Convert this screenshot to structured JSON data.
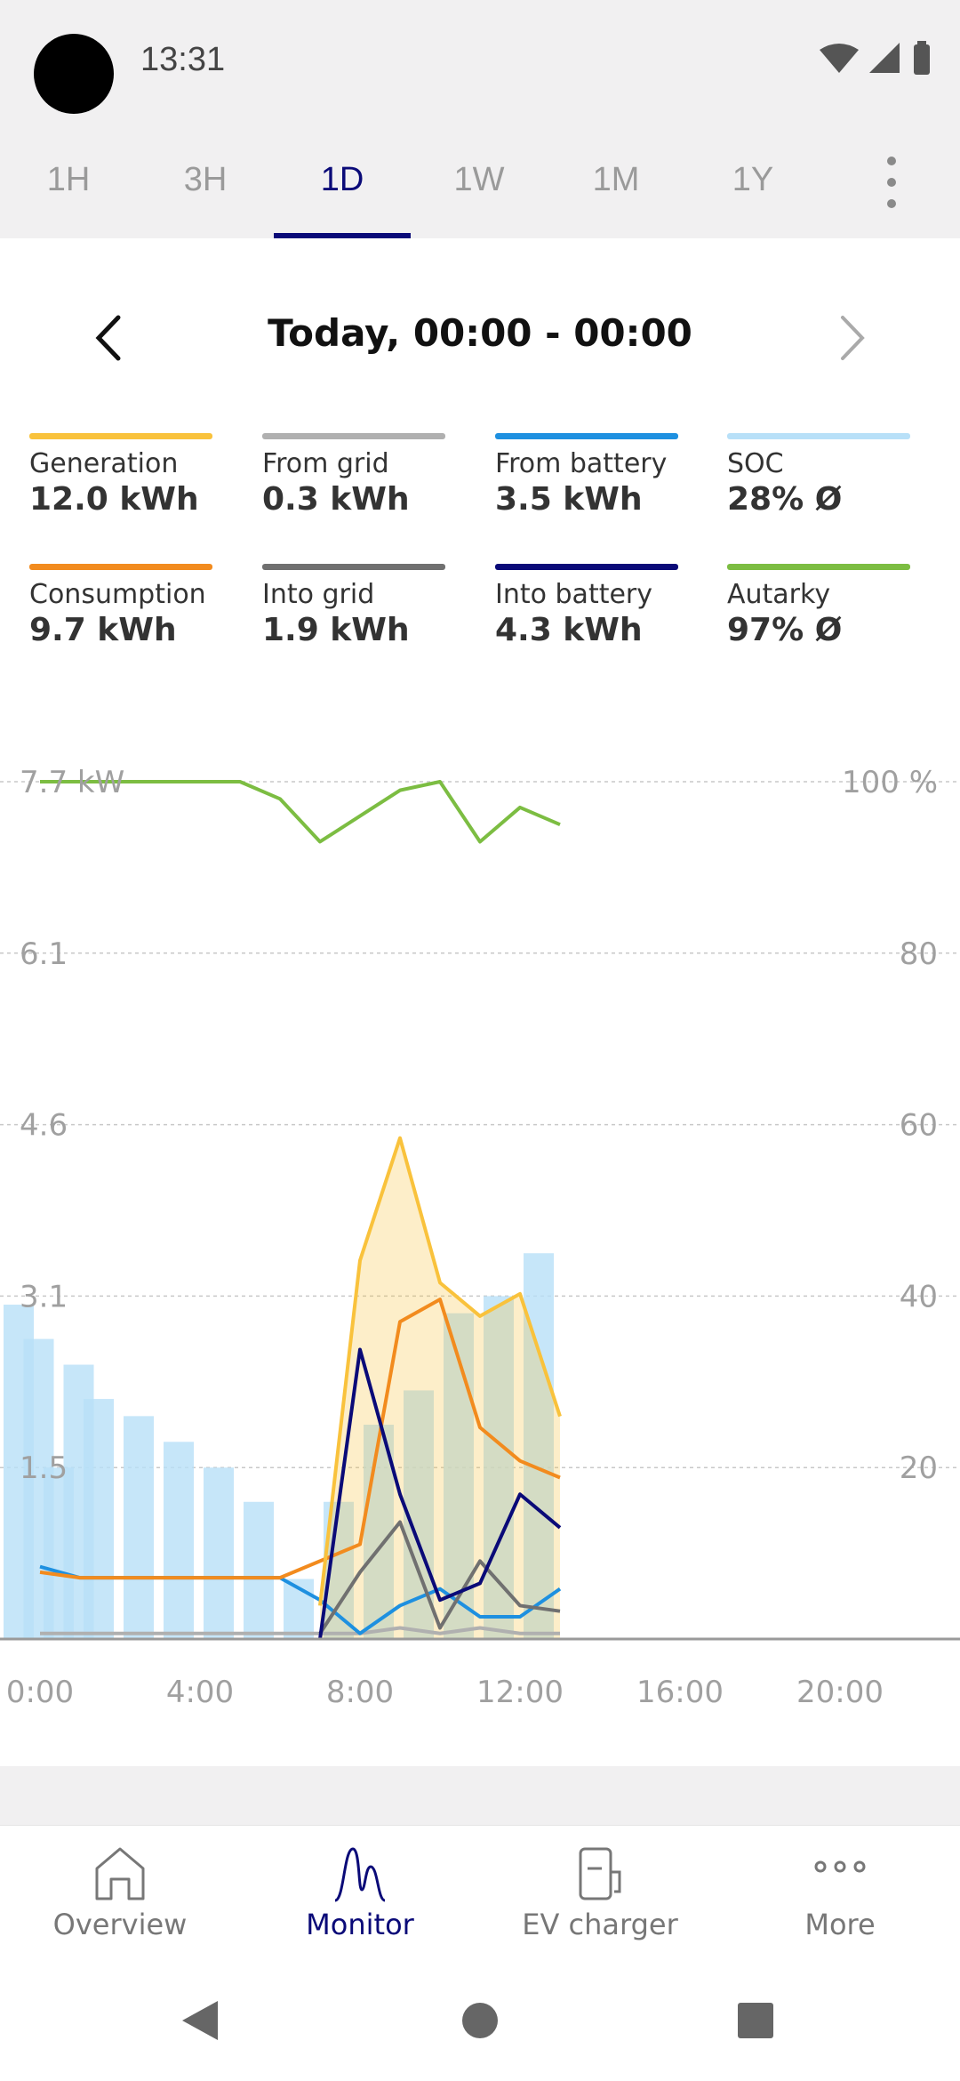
{
  "status": {
    "time": "13:31"
  },
  "tabs": [
    {
      "label": "1H"
    },
    {
      "label": "3H"
    },
    {
      "label": "1D",
      "active": true
    },
    {
      "label": "1W"
    },
    {
      "label": "1M"
    },
    {
      "label": "1Y"
    }
  ],
  "date_range": "Today, 00:00 - 00:00",
  "legend": [
    {
      "label": "Generation",
      "value": "12.0 kWh",
      "color": "#f9c23c"
    },
    {
      "label": "From grid",
      "value": "0.3 kWh",
      "color": "#b0b0b0"
    },
    {
      "label": "From battery",
      "value": "3.5 kWh",
      "color": "#1e90e0"
    },
    {
      "label": "SOC",
      "value": "28% Ø",
      "color": "#b8e0f8"
    },
    {
      "label": "Consumption",
      "value": "9.7 kWh",
      "color": "#f28b1e"
    },
    {
      "label": "Into grid",
      "value": "1.9 kWh",
      "color": "#707070"
    },
    {
      "label": "Into battery",
      "value": "4.3 kWh",
      "color": "#0a0a78"
    },
    {
      "label": "Autarky",
      "value": "97% Ø",
      "color": "#7cbd42"
    }
  ],
  "chart_data": {
    "type": "line",
    "x": [
      "00:00",
      "01:00",
      "02:00",
      "03:00",
      "04:00",
      "05:00",
      "06:00",
      "07:00",
      "08:00",
      "09:00",
      "10:00",
      "11:00",
      "12:00",
      "13:00"
    ],
    "x_ticks": [
      "0:00",
      "4:00",
      "8:00",
      "12:00",
      "16:00",
      "20:00"
    ],
    "xlim": [
      0,
      24
    ],
    "y_left_ticks": [
      "7.7 kW",
      "6.1",
      "4.6",
      "3.1",
      "1.5"
    ],
    "y_left_lim": [
      0,
      7.7
    ],
    "y_right_ticks": [
      "100 %",
      "80",
      "60",
      "40",
      "20"
    ],
    "y_right_lim": [
      0,
      100
    ],
    "series": [
      {
        "name": "SOC",
        "unit": "%",
        "color": "#b8e0f8",
        "type": "bar",
        "x": [
          0,
          0.5,
          1,
          1.5,
          2,
          3,
          4,
          5,
          6,
          7,
          8,
          9,
          10,
          11,
          12,
          13
        ],
        "values": [
          39,
          35,
          20,
          32,
          28,
          26,
          23,
          20,
          16,
          7,
          16,
          25,
          29,
          38,
          40,
          45
        ]
      },
      {
        "name": "Autarky",
        "unit": "%",
        "color": "#7cbd42",
        "x": [
          0,
          1,
          2,
          3,
          4,
          5,
          6,
          7,
          8,
          9,
          10,
          11,
          12,
          13
        ],
        "values": [
          100,
          100,
          100,
          100,
          100,
          100,
          98,
          93,
          96,
          99,
          100,
          93,
          97,
          95
        ]
      },
      {
        "name": "Generation",
        "unit": "kW",
        "color": "#f9c23c",
        "x": [
          7,
          8,
          9,
          10,
          11,
          12,
          13
        ],
        "values": [
          0.3,
          3.4,
          4.5,
          3.2,
          2.9,
          3.1,
          2.0
        ]
      },
      {
        "name": "Consumption",
        "unit": "kW",
        "color": "#f28b1e",
        "x": [
          0,
          1,
          2,
          3,
          4,
          5,
          6,
          7,
          8,
          9,
          10,
          11,
          12,
          13
        ],
        "values": [
          0.6,
          0.55,
          0.55,
          0.55,
          0.55,
          0.55,
          0.55,
          0.7,
          0.85,
          2.85,
          3.05,
          1.9,
          1.6,
          1.45
        ]
      },
      {
        "name": "Into battery",
        "unit": "kW",
        "color": "#0a0a78",
        "x": [
          7,
          8,
          9,
          10,
          11,
          12,
          13
        ],
        "values": [
          0.0,
          2.6,
          1.3,
          0.35,
          0.5,
          1.3,
          1.0
        ]
      },
      {
        "name": "Into grid",
        "unit": "kW",
        "color": "#707070",
        "x": [
          7,
          8,
          9,
          10,
          11,
          12,
          13
        ],
        "values": [
          0.05,
          0.6,
          1.05,
          0.1,
          0.7,
          0.3,
          0.25
        ]
      },
      {
        "name": "From battery",
        "unit": "kW",
        "color": "#1e90e0",
        "x": [
          0,
          1,
          2,
          3,
          4,
          5,
          6,
          7,
          8,
          9,
          10,
          11,
          12,
          13
        ],
        "values": [
          0.65,
          0.55,
          0.55,
          0.55,
          0.55,
          0.55,
          0.55,
          0.35,
          0.05,
          0.3,
          0.45,
          0.2,
          0.2,
          0.45
        ]
      },
      {
        "name": "From grid",
        "unit": "kW",
        "color": "#b0b0b0",
        "x": [
          0,
          2,
          4,
          6,
          8,
          9,
          10,
          11,
          12,
          13
        ],
        "values": [
          0.05,
          0.05,
          0.05,
          0.05,
          0.05,
          0.1,
          0.05,
          0.1,
          0.05,
          0.05
        ]
      }
    ],
    "grid": true
  },
  "bottom_nav": [
    {
      "label": "Overview"
    },
    {
      "label": "Monitor",
      "active": true
    },
    {
      "label": "EV charger"
    },
    {
      "label": "More"
    }
  ]
}
